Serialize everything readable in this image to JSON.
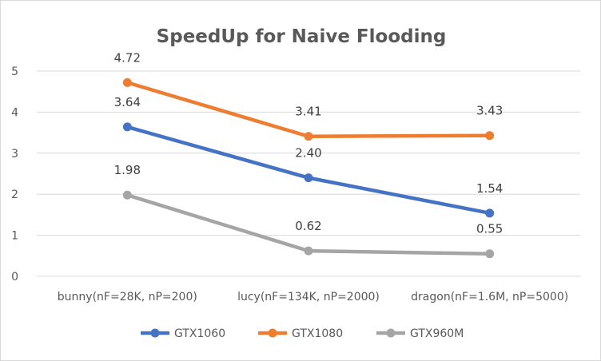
{
  "chart_data": {
    "type": "line",
    "title": "SpeedUp for Naive Flooding",
    "categories": [
      "bunny(nF=28K, nP=200)",
      "lucy(nF=134K, nP=2000)",
      "dragon(nF=1.6M, nP=5000)"
    ],
    "series": [
      {
        "name": "GTX1060",
        "color": "#4472c4",
        "values": [
          3.64,
          2.4,
          1.54
        ],
        "labels": [
          "3.64",
          "2.40",
          "1.54"
        ]
      },
      {
        "name": "GTX1080",
        "color": "#ed7d31",
        "values": [
          4.72,
          3.41,
          3.43
        ],
        "labels": [
          "4.72",
          "3.41",
          "3.43"
        ]
      },
      {
        "name": "GTX960M",
        "color": "#a5a5a5",
        "values": [
          1.98,
          0.62,
          0.55
        ],
        "labels": [
          "1.98",
          "0.62",
          "0.55"
        ]
      }
    ],
    "yticks": [
      "0",
      "1",
      "2",
      "3",
      "4",
      "5"
    ],
    "ylim": [
      0,
      5
    ],
    "xlabel": "",
    "ylabel": "",
    "grid": true,
    "legend": "bottom"
  }
}
